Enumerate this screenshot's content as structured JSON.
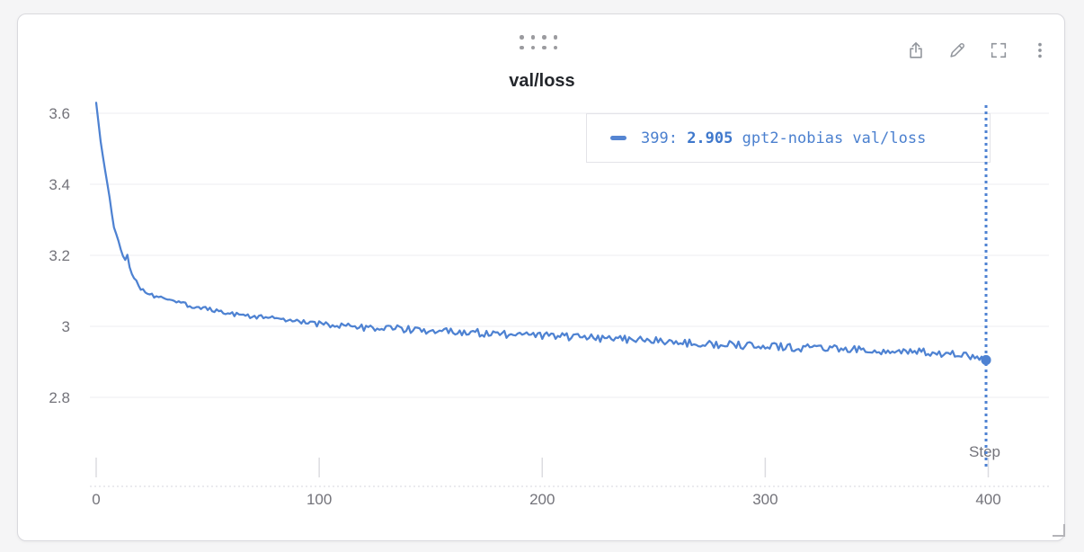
{
  "panel": {
    "title": "val/loss"
  },
  "toolbar": {
    "icons": [
      "share-icon",
      "edit-pencil-icon",
      "fullscreen-icon",
      "kebab-menu-icon"
    ]
  },
  "legend": {
    "step_label": "399: ",
    "value": "2.905",
    "series_label": " gpt2-nobias val/loss",
    "text_color": "#4b80cf",
    "dash_color": "#5585d2"
  },
  "colors": {
    "line": "#4e82d2",
    "grid": "#ededf0",
    "axis_text": "#73737a",
    "tick": "#dcdce0",
    "baseline_dots": "#e4e4e8",
    "crosshair": "#4e82d2"
  },
  "chart_data": {
    "type": "line",
    "title": "val/loss",
    "xlabel": "Step",
    "ylabel": "",
    "xlim": [
      0,
      400
    ],
    "ylim": [
      2.7,
      3.63
    ],
    "x_ticks": [
      0,
      100,
      200,
      300,
      400
    ],
    "y_ticks": [
      3.6,
      3.4,
      3.2,
      3,
      2.8
    ],
    "grid": "horizontal",
    "legend_position": "top-right",
    "crosshair_step": 399,
    "marker": {
      "step": 399,
      "value": 2.905
    },
    "series": [
      {
        "name": "gpt2-nobias",
        "metric": "val/loss",
        "color": "#4e82d2",
        "final_step": 399,
        "final_value": 2.905,
        "noise_amplitude": 0.011,
        "anchors": [
          [
            0,
            3.63
          ],
          [
            2,
            3.52
          ],
          [
            4,
            3.44
          ],
          [
            5,
            3.4
          ],
          [
            6,
            3.36
          ],
          [
            7,
            3.32
          ],
          [
            8,
            3.28
          ],
          [
            9,
            3.26
          ],
          [
            10,
            3.24
          ],
          [
            11,
            3.215
          ],
          [
            12,
            3.2
          ],
          [
            13,
            3.19
          ],
          [
            14,
            3.2
          ],
          [
            15,
            3.17
          ],
          [
            16,
            3.15
          ],
          [
            18,
            3.125
          ],
          [
            20,
            3.105
          ],
          [
            22,
            3.098
          ],
          [
            24,
            3.09
          ],
          [
            26,
            3.085
          ],
          [
            28,
            3.082
          ],
          [
            30,
            3.078
          ],
          [
            34,
            3.072
          ],
          [
            38,
            3.065
          ],
          [
            42,
            3.058
          ],
          [
            46,
            3.052
          ],
          [
            50,
            3.048
          ],
          [
            55,
            3.042
          ],
          [
            60,
            3.036
          ],
          [
            65,
            3.032
          ],
          [
            70,
            3.028
          ],
          [
            76,
            3.024
          ],
          [
            82,
            3.02
          ],
          [
            88,
            3.015
          ],
          [
            94,
            3.01
          ],
          [
            100,
            3.006
          ],
          [
            110,
            3.0
          ],
          [
            120,
            2.997
          ],
          [
            130,
            2.994
          ],
          [
            140,
            2.991
          ],
          [
            150,
            2.988
          ],
          [
            160,
            2.985
          ],
          [
            170,
            2.982
          ],
          [
            180,
            2.979
          ],
          [
            190,
            2.976
          ],
          [
            200,
            2.974
          ],
          [
            210,
            2.971
          ],
          [
            220,
            2.968
          ],
          [
            230,
            2.966
          ],
          [
            240,
            2.963
          ],
          [
            250,
            2.959
          ],
          [
            260,
            2.955
          ],
          [
            270,
            2.952
          ],
          [
            280,
            2.949
          ],
          [
            290,
            2.947
          ],
          [
            300,
            2.944
          ],
          [
            310,
            2.942
          ],
          [
            320,
            2.939
          ],
          [
            330,
            2.937
          ],
          [
            340,
            2.934
          ],
          [
            350,
            2.932
          ],
          [
            360,
            2.929
          ],
          [
            370,
            2.927
          ],
          [
            380,
            2.924
          ],
          [
            385,
            2.922
          ],
          [
            390,
            2.92
          ],
          [
            394,
            2.916
          ],
          [
            397,
            2.91
          ],
          [
            399,
            2.905
          ]
        ]
      }
    ]
  }
}
